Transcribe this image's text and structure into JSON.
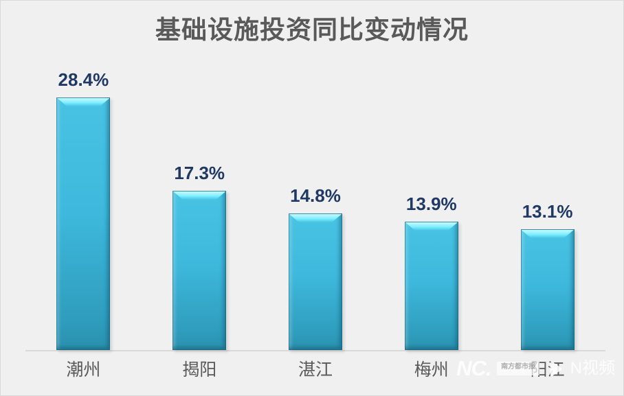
{
  "page": {
    "background_color": "#f0f0f0",
    "border_color": "#d9d9d9"
  },
  "chart_data": {
    "type": "bar",
    "title": "基础设施投资同比变动情况",
    "categories": [
      "潮州",
      "揭阳",
      "湛江",
      "梅州",
      "阳江"
    ],
    "values": [
      28.4,
      17.3,
      14.8,
      13.9,
      13.1
    ],
    "value_labels": [
      "28.4%",
      "17.3%",
      "14.8%",
      "13.9%",
      "13.1%"
    ],
    "xlabel": "",
    "ylabel": "",
    "ylim": [
      0,
      30
    ],
    "grid": false,
    "legend": false,
    "y_axis_visible": false,
    "axis_line_color": "#d9d9d9",
    "title_color": "#595959",
    "category_label_color": "#595959",
    "value_label_color": "#1f3864",
    "bar_color_top": "#49c3e3",
    "bar_color_bottom": "#2f9dbd",
    "bar_bevel_highlight": "#7deeff"
  },
  "watermark": {
    "brand_logo": "NC.",
    "paper_name": "南方都市报",
    "play_icon": "play-icon",
    "video_brand": "N视频"
  }
}
